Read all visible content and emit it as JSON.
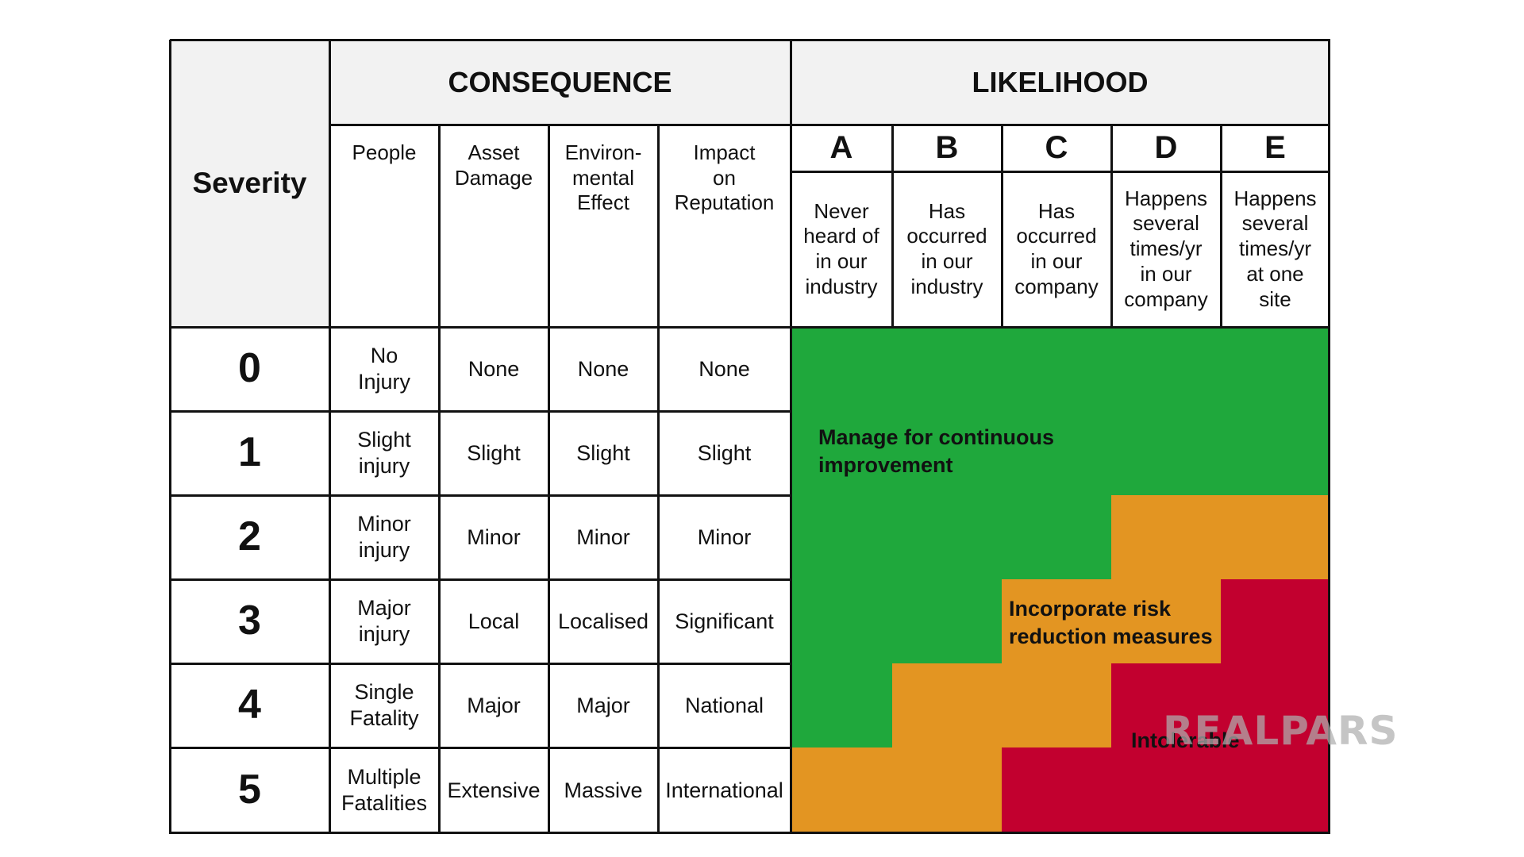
{
  "headers": {
    "severity": "Severity",
    "consequence": "CONSEQUENCE",
    "likelihood": "LIKELIHOOD",
    "consequence_columns": [
      "People",
      "Asset\nDamage",
      "Environ-\nmental\nEffect",
      "Impact\non\nReputation"
    ],
    "likelihood_letters": [
      "A",
      "B",
      "C",
      "D",
      "E"
    ],
    "likelihood_descriptions": [
      "Never\nheard of\nin our\nindustry",
      "Has\noccurred\nin our\nindustry",
      "Has\noccurred\nin our\ncompany",
      "Happens\nseveral\ntimes/yr\nin our\ncompany",
      "Happens\nseveral\ntimes/yr\nat one\nsite"
    ]
  },
  "rows": [
    {
      "severity": "0",
      "people": "No\nInjury",
      "asset": "None",
      "environment": "None",
      "reputation": "None"
    },
    {
      "severity": "1",
      "people": "Slight\ninjury",
      "asset": "Slight",
      "environment": "Slight",
      "reputation": "Slight"
    },
    {
      "severity": "2",
      "people": "Minor\ninjury",
      "asset": "Minor",
      "environment": "Minor",
      "reputation": "Minor"
    },
    {
      "severity": "3",
      "people": "Major\ninjury",
      "asset": "Local",
      "environment": "Localised",
      "reputation": "Significant"
    },
    {
      "severity": "4",
      "people": "Single\nFatality",
      "asset": "Major",
      "environment": "Major",
      "reputation": "National"
    },
    {
      "severity": "5",
      "people": "Multiple\nFatalities",
      "asset": "Extensive",
      "environment": "Massive",
      "reputation": "International"
    }
  ],
  "risk_zones": {
    "labels": {
      "green": "Manage for continuous\nimprovement",
      "orange": "Incorporate risk\nreduction measures",
      "red": "Intolerable"
    },
    "colors": {
      "green": "#1fa83c",
      "orange": "#e39522",
      "red": "#c2002f"
    },
    "grid": [
      [
        "green",
        "green",
        "green",
        "green",
        "green"
      ],
      [
        "green",
        "green",
        "green",
        "green",
        "green"
      ],
      [
        "green",
        "green",
        "green",
        "orange",
        "orange"
      ],
      [
        "green",
        "green",
        "orange",
        "orange",
        "red"
      ],
      [
        "green",
        "orange",
        "orange",
        "red",
        "red"
      ],
      [
        "orange",
        "orange",
        "red",
        "red",
        "red"
      ]
    ]
  },
  "watermark": "REALPARS"
}
